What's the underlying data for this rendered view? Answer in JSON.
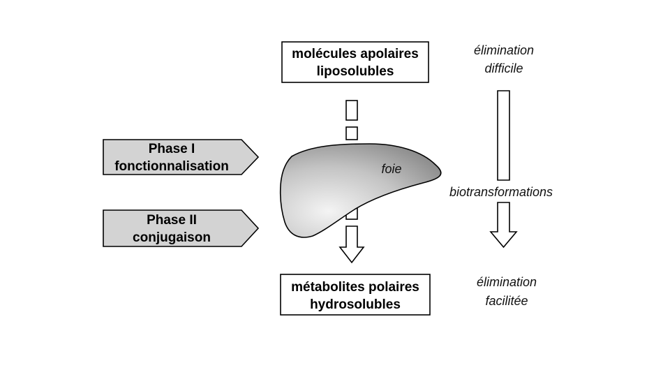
{
  "top_box": {
    "line1": "molécules apolaires",
    "line2": "liposolubles"
  },
  "bottom_box": {
    "line1": "métabolites polaires",
    "line2": "hydrosolubles"
  },
  "phase1": {
    "line1": "Phase I",
    "line2": "fonctionnalisation"
  },
  "phase2": {
    "line1": "Phase II",
    "line2": "conjugaison"
  },
  "organ_label": "foie",
  "right_column": {
    "top_line1": "élimination",
    "top_line2": "difficile",
    "middle": "biotransformations",
    "bottom_line1": "élimination",
    "bottom_line2": "facilitée"
  },
  "colors": {
    "phase_fill": "#d3d3d3",
    "liver_dark": "#8c8c8c",
    "liver_light": "#f2f2f2"
  }
}
